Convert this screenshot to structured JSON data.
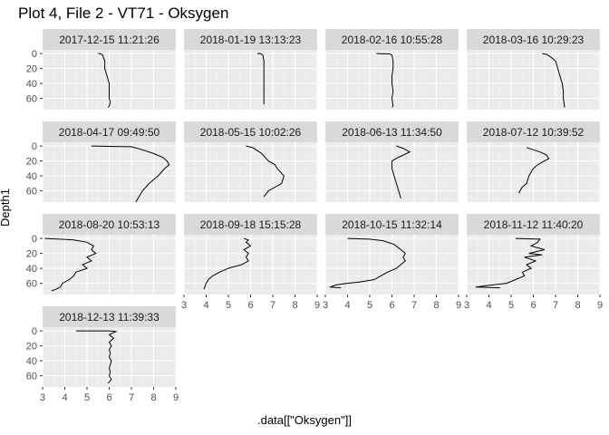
{
  "title": "Plot 4, File 2 - VT71  -  Oksygen",
  "chart_data": {
    "type": "line",
    "title": "Plot 4, File 2 - VT71  -  Oksygen",
    "xlabel": ".data[[\"Oksygen\"]]",
    "ylabel": "Depth1",
    "xlim": [
      3,
      9
    ],
    "ylim": [
      75,
      -5
    ],
    "x_ticks": [
      3,
      4,
      5,
      6,
      7,
      8,
      9
    ],
    "y_ticks": [
      0,
      20,
      40,
      60
    ],
    "y_reversed": true,
    "grid": true,
    "facets": [
      {
        "label": "2017-12-15 11:21:26",
        "points": [
          [
            5.5,
            0
          ],
          [
            5.6,
            0
          ],
          [
            5.7,
            2
          ],
          [
            5.8,
            10
          ],
          [
            5.8,
            20
          ],
          [
            5.9,
            30
          ],
          [
            6.0,
            40
          ],
          [
            6.0,
            50
          ],
          [
            6.0,
            60
          ],
          [
            6.05,
            65
          ],
          [
            6.0,
            70
          ],
          [
            5.95,
            72
          ]
        ]
      },
      {
        "label": "2018-01-19 13:13:23",
        "points": [
          [
            6.3,
            0
          ],
          [
            6.45,
            0
          ],
          [
            6.55,
            2
          ],
          [
            6.6,
            10
          ],
          [
            6.6,
            20
          ],
          [
            6.6,
            40
          ],
          [
            6.6,
            60
          ],
          [
            6.6,
            68
          ]
        ]
      },
      {
        "label": "2018-02-16 10:55:28",
        "points": [
          [
            5.3,
            0
          ],
          [
            5.9,
            0.5
          ],
          [
            6.0,
            2
          ],
          [
            6.05,
            10
          ],
          [
            6.05,
            20
          ],
          [
            6.0,
            30
          ],
          [
            6.0,
            40
          ],
          [
            6.05,
            50
          ],
          [
            6.0,
            60
          ],
          [
            6.05,
            70
          ],
          [
            6.0,
            72
          ]
        ]
      },
      {
        "label": "2018-03-16 10:29:23",
        "points": [
          [
            6.4,
            0
          ],
          [
            6.6,
            1
          ],
          [
            6.8,
            5
          ],
          [
            7.0,
            10
          ],
          [
            7.1,
            20
          ],
          [
            7.2,
            30
          ],
          [
            7.3,
            40
          ],
          [
            7.35,
            50
          ],
          [
            7.35,
            60
          ],
          [
            7.4,
            70
          ],
          [
            7.4,
            72
          ]
        ]
      },
      {
        "label": "2018-04-17 09:49:50",
        "points": [
          [
            5.2,
            0
          ],
          [
            7.0,
            1
          ],
          [
            7.5,
            5
          ],
          [
            8.0,
            10
          ],
          [
            8.4,
            15
          ],
          [
            8.6,
            20
          ],
          [
            8.7,
            25
          ],
          [
            8.5,
            30
          ],
          [
            8.2,
            40
          ],
          [
            7.8,
            50
          ],
          [
            7.5,
            60
          ],
          [
            7.3,
            70
          ],
          [
            7.2,
            75
          ]
        ]
      },
      {
        "label": "2018-05-15 10:02:26",
        "points": [
          [
            5.8,
            0
          ],
          [
            6.1,
            2
          ],
          [
            6.5,
            10
          ],
          [
            6.8,
            20
          ],
          [
            7.1,
            25
          ],
          [
            7.2,
            30
          ],
          [
            7.5,
            40
          ],
          [
            7.4,
            50
          ],
          [
            7.1,
            55
          ],
          [
            6.8,
            60
          ],
          [
            6.6,
            68
          ]
        ]
      },
      {
        "label": "2018-06-13 11:34:50",
        "points": [
          [
            6.2,
            0
          ],
          [
            6.5,
            3
          ],
          [
            6.8,
            8
          ],
          [
            6.3,
            15
          ],
          [
            6.0,
            20
          ],
          [
            6.0,
            30
          ],
          [
            6.1,
            40
          ],
          [
            6.2,
            50
          ],
          [
            6.3,
            60
          ],
          [
            6.4,
            70
          ]
        ]
      },
      {
        "label": "2018-07-12 10:39:52",
        "points": [
          [
            5.7,
            2
          ],
          [
            6.0,
            5
          ],
          [
            6.3,
            8
          ],
          [
            6.6,
            12
          ],
          [
            6.7,
            17
          ],
          [
            6.5,
            20
          ],
          [
            6.2,
            25
          ],
          [
            6.0,
            30
          ],
          [
            5.8,
            40
          ],
          [
            5.7,
            50
          ],
          [
            5.5,
            55
          ],
          [
            5.4,
            60
          ],
          [
            5.35,
            63
          ]
        ]
      },
      {
        "label": "2018-08-20 10:53:13",
        "points": [
          [
            3.1,
            0
          ],
          [
            3.8,
            1
          ],
          [
            4.4,
            2
          ],
          [
            5.0,
            5
          ],
          [
            5.3,
            10
          ],
          [
            5.2,
            15
          ],
          [
            5.4,
            20
          ],
          [
            5.0,
            25
          ],
          [
            5.2,
            30
          ],
          [
            4.8,
            35
          ],
          [
            5.0,
            40
          ],
          [
            4.5,
            45
          ],
          [
            4.4,
            50
          ],
          [
            4.2,
            55
          ],
          [
            3.9,
            60
          ],
          [
            3.8,
            65
          ],
          [
            3.6,
            68
          ],
          [
            3.4,
            70
          ]
        ]
      },
      {
        "label": "2018-09-18 15:15:28",
        "points": [
          [
            5.7,
            0
          ],
          [
            5.9,
            2
          ],
          [
            5.8,
            5
          ],
          [
            6.0,
            10
          ],
          [
            5.7,
            15
          ],
          [
            5.9,
            20
          ],
          [
            5.8,
            25
          ],
          [
            5.9,
            30
          ],
          [
            5.6,
            35
          ],
          [
            5.0,
            40
          ],
          [
            4.6,
            45
          ],
          [
            4.3,
            50
          ],
          [
            4.1,
            55
          ],
          [
            4.0,
            60
          ],
          [
            3.9,
            68
          ]
        ]
      },
      {
        "label": "2018-10-15 11:32:14",
        "points": [
          [
            4.0,
            0
          ],
          [
            5.0,
            1
          ],
          [
            5.6,
            3
          ],
          [
            6.1,
            8
          ],
          [
            6.4,
            15
          ],
          [
            6.6,
            20
          ],
          [
            6.5,
            25
          ],
          [
            6.6,
            30
          ],
          [
            6.4,
            35
          ],
          [
            6.2,
            40
          ],
          [
            5.8,
            45
          ],
          [
            5.5,
            50
          ],
          [
            5.2,
            55
          ],
          [
            4.6,
            58
          ],
          [
            4.0,
            60
          ],
          [
            3.5,
            62
          ],
          [
            3.2,
            65
          ],
          [
            3.7,
            66
          ]
        ]
      },
      {
        "label": "2018-11-12 11:40:20",
        "points": [
          [
            5.2,
            0
          ],
          [
            6.3,
            1
          ],
          [
            6.2,
            5
          ],
          [
            5.9,
            10
          ],
          [
            6.5,
            15
          ],
          [
            5.8,
            20
          ],
          [
            6.4,
            22
          ],
          [
            5.6,
            25
          ],
          [
            6.1,
            30
          ],
          [
            5.7,
            35
          ],
          [
            5.9,
            40
          ],
          [
            5.5,
            45
          ],
          [
            5.6,
            50
          ],
          [
            5.2,
            55
          ],
          [
            4.8,
            60
          ],
          [
            4.2,
            62
          ],
          [
            3.4,
            65
          ],
          [
            4.5,
            66
          ]
        ]
      },
      {
        "label": "2018-12-13 11:39:33",
        "points": [
          [
            4.5,
            0
          ],
          [
            6.0,
            0
          ],
          [
            6.3,
            1
          ],
          [
            6.0,
            5
          ],
          [
            6.2,
            10
          ],
          [
            6.0,
            15
          ],
          [
            6.1,
            20
          ],
          [
            6.0,
            25
          ],
          [
            6.05,
            30
          ],
          [
            6.0,
            35
          ],
          [
            6.1,
            40
          ],
          [
            6.0,
            50
          ],
          [
            6.05,
            55
          ],
          [
            6.0,
            60
          ],
          [
            6.1,
            65
          ],
          [
            5.95,
            70
          ]
        ]
      }
    ]
  }
}
